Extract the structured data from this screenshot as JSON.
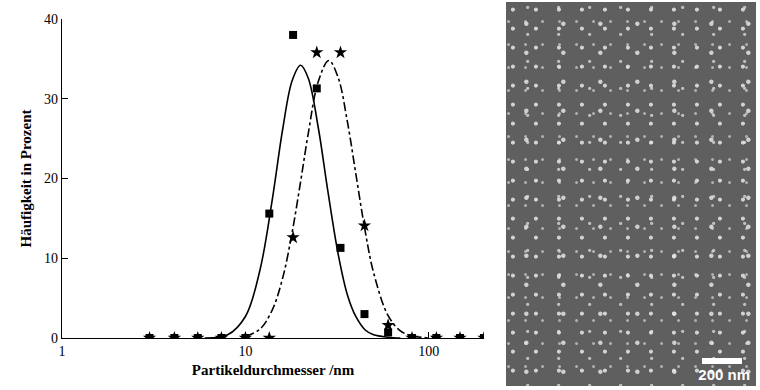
{
  "chart_data": {
    "type": "scatter",
    "x_label": "Partikeldurchmesser /nm",
    "y_label": "Häufigkeit in Prozent",
    "log": "x",
    "xlim": [
      1,
      200
    ],
    "xticks": [
      1,
      10,
      100
    ],
    "ylim": [
      0,
      40
    ],
    "yticks": [
      0,
      10,
      20,
      30,
      40
    ],
    "grid": false,
    "series": [
      {
        "type": "scatter",
        "marker": "square",
        "color": "#000000",
        "x": [
          3,
          4.1,
          5.5,
          7.4,
          10,
          13.5,
          18.2,
          24.5,
          33,
          44.6,
          60,
          81,
          110,
          148,
          200
        ],
        "values": [
          0,
          0,
          0,
          0,
          0,
          15.6,
          38,
          31.3,
          11.3,
          3,
          0.7,
          0,
          0,
          0,
          0
        ]
      },
      {
        "type": "scatter",
        "marker": "star",
        "color": "#000000",
        "x": [
          3,
          4.1,
          5.5,
          7.4,
          10,
          13.5,
          18.2,
          24.5,
          33,
          44.6,
          60,
          81,
          110,
          148,
          200
        ],
        "values": [
          0,
          0,
          0,
          0,
          0,
          0,
          12.6,
          35.8,
          35.8,
          14.1,
          1.6,
          0,
          0,
          0,
          0
        ]
      },
      {
        "type": "line",
        "line_style": "solid",
        "color": "#000000",
        "x": [
          6,
          8,
          10,
          12,
          14,
          16,
          18,
          20,
          22,
          25,
          28,
          32,
          36,
          40,
          45,
          50,
          60,
          70
        ],
        "values": [
          0,
          0.4,
          2.7,
          8.5,
          17.3,
          26.3,
          32.3,
          34.2,
          32.6,
          26.3,
          18.8,
          10.6,
          5.4,
          2.7,
          1,
          0.4,
          0.1,
          0
        ]
      },
      {
        "type": "line",
        "line_style": "dashdot",
        "color": "#000000",
        "x": [
          10,
          12,
          14,
          16,
          18,
          20,
          22,
          25,
          28.5,
          32,
          36,
          40,
          45,
          50,
          60,
          70,
          80,
          100
        ],
        "values": [
          0.2,
          1.1,
          3.5,
          7.6,
          13.3,
          19.6,
          25.6,
          32.2,
          34.8,
          32.7,
          27.1,
          20.6,
          13.4,
          8.2,
          2.8,
          0.9,
          0.3,
          0
        ]
      }
    ]
  },
  "image": {
    "scale_bar_label": "200 nm"
  }
}
